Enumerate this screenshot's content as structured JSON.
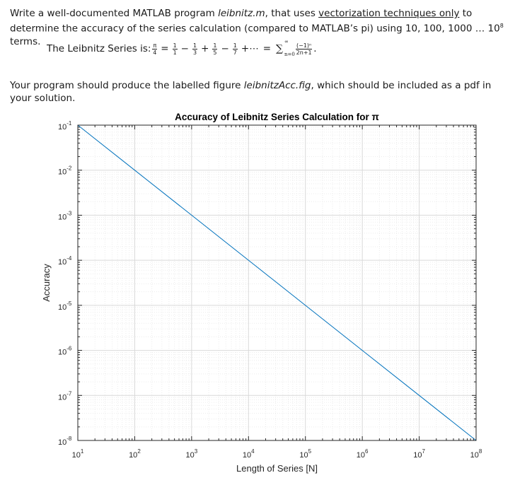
{
  "problem": {
    "intro_a": "Write a well-documented MATLAB program ",
    "intro_file": "leibnitz.m",
    "intro_b": ", that uses ",
    "intro_underline": "vectorization techniques only",
    "intro_c": " to determine the accuracy of the series calculation (compared to MATLAB’s pi) using 10, 100, 1000 … 10",
    "intro_exp": "8",
    "intro_d": " terms.",
    "formula_label": "The Leibnitz Series is: ",
    "formula_lhs_num": "π",
    "formula_lhs_den": "4",
    "formula_terms": [
      {
        "num": "1",
        "den": "1",
        "op": "−"
      },
      {
        "num": "1",
        "den": "3",
        "op": "+"
      },
      {
        "num": "1",
        "den": "5",
        "op": "−"
      },
      {
        "num": "1",
        "den": "7",
        "op": "+⋯"
      }
    ],
    "formula_eq": "=",
    "formula_sum": "∑",
    "formula_sum_top": "∞",
    "formula_sum_bottom": "n=0",
    "formula_rhs_num": "(−1)ⁿ",
    "formula_rhs_den": "2n+1",
    "formula_end": ".",
    "output_a": "Your program should produce the labelled figure ",
    "output_file": "leibnitzAcc.fig",
    "output_b": ", which should be included as a pdf in your solution."
  },
  "chart_data": {
    "type": "line",
    "title": "Accuracy of Leibnitz Series Calculation for π",
    "xlabel": "Length of Series [N]",
    "ylabel": "Accuracy",
    "xscale": "log",
    "yscale": "log",
    "xlim": [
      10,
      100000000
    ],
    "ylim": [
      1e-08,
      0.1
    ],
    "grid": true,
    "minor_grid": true,
    "x_ticks": [
      {
        "base": "10",
        "exp": "1"
      },
      {
        "base": "10",
        "exp": "2"
      },
      {
        "base": "10",
        "exp": "3"
      },
      {
        "base": "10",
        "exp": "4"
      },
      {
        "base": "10",
        "exp": "5"
      },
      {
        "base": "10",
        "exp": "6"
      },
      {
        "base": "10",
        "exp": "7"
      },
      {
        "base": "10",
        "exp": "8"
      }
    ],
    "y_ticks": [
      {
        "base": "10",
        "exp": "-1"
      },
      {
        "base": "10",
        "exp": "-2"
      },
      {
        "base": "10",
        "exp": "-3"
      },
      {
        "base": "10",
        "exp": "-4"
      },
      {
        "base": "10",
        "exp": "-5"
      },
      {
        "base": "10",
        "exp": "-6"
      },
      {
        "base": "10",
        "exp": "-7"
      },
      {
        "base": "10",
        "exp": "-8"
      }
    ],
    "series": [
      {
        "color": "#0072BD",
        "x": [
          10,
          100,
          1000,
          10000,
          100000,
          1000000,
          10000000,
          100000000
        ],
        "y": [
          0.1,
          0.01,
          0.001,
          0.0001,
          1e-05,
          1e-06,
          1e-07,
          1e-08
        ]
      }
    ],
    "colors": {
      "line": "#0072BD",
      "major_grid": "#d9d9d9",
      "minor_grid": "#ececec",
      "axis": "#262626"
    }
  }
}
